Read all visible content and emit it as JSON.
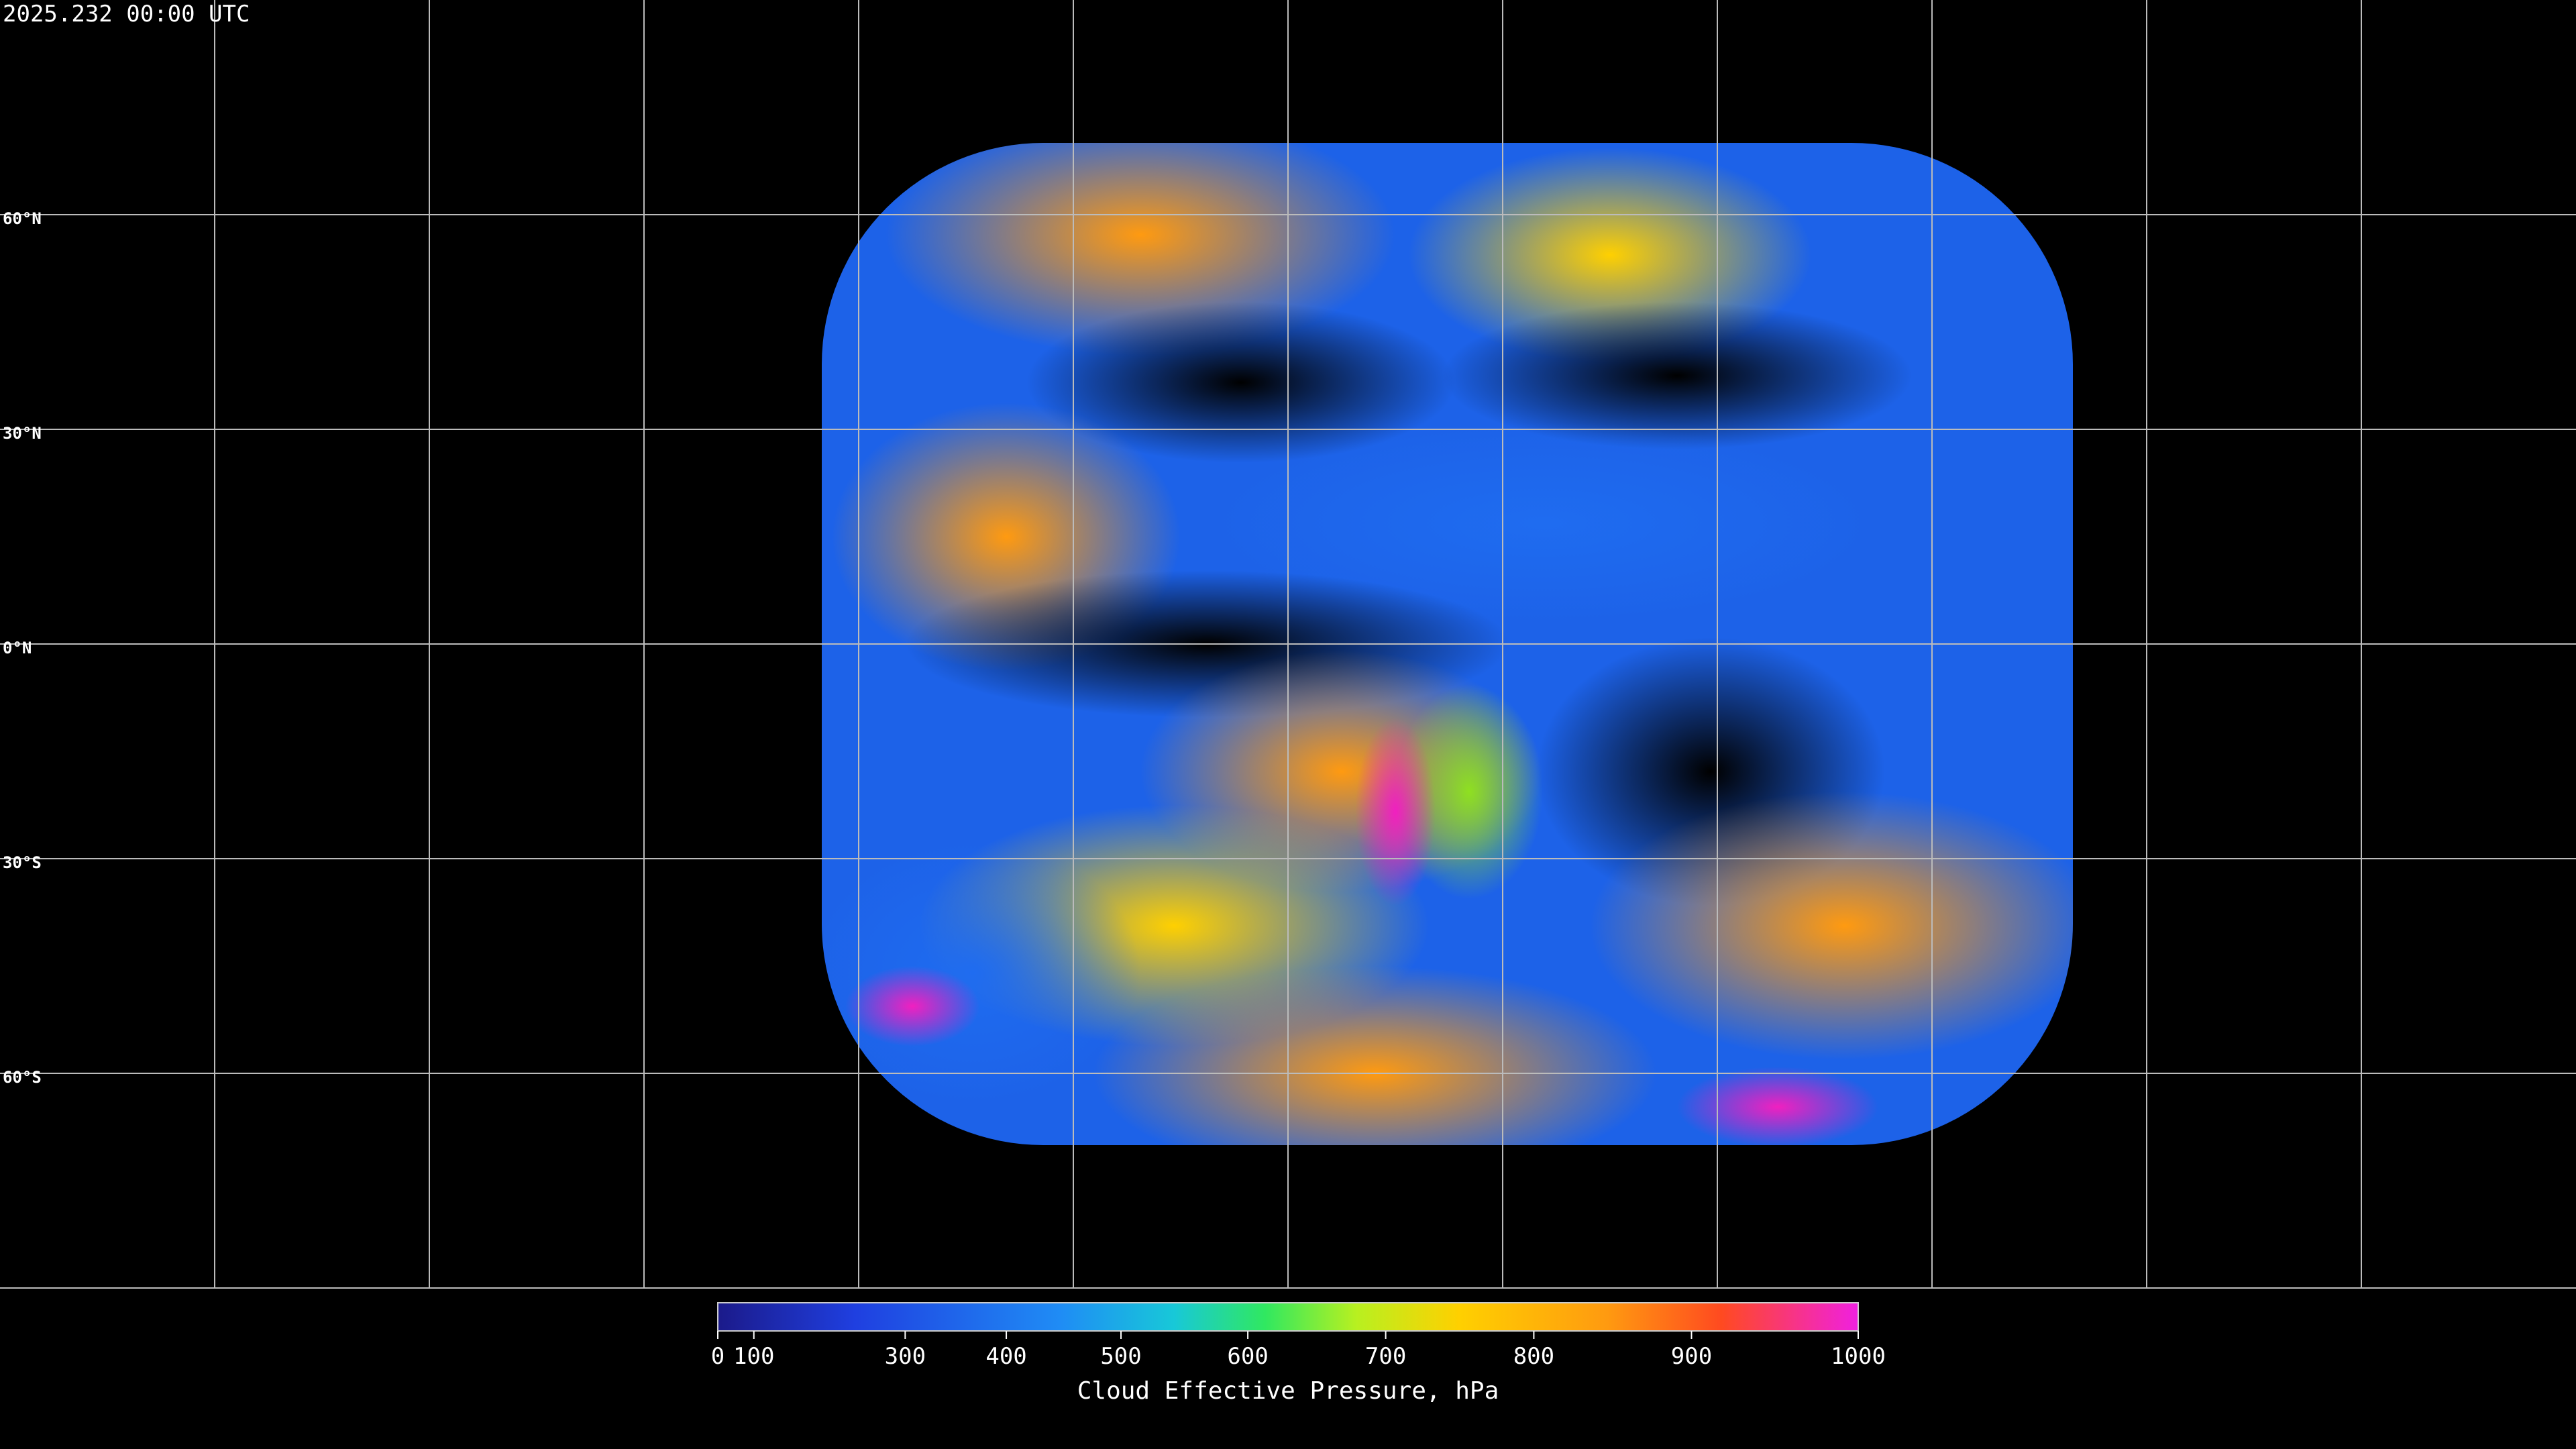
{
  "header": {
    "title": "2025.232 00:00 UTC"
  },
  "map": {
    "latitude_labels": [
      "60°N",
      "30°N",
      "0°N",
      "30°S",
      "60°S"
    ]
  },
  "colorbar": {
    "label": "Cloud Effective Pressure, hPa",
    "range": [
      0,
      1000
    ],
    "ticks": [
      0,
      100,
      300,
      400,
      500,
      600,
      700,
      800,
      900,
      1000
    ]
  }
}
